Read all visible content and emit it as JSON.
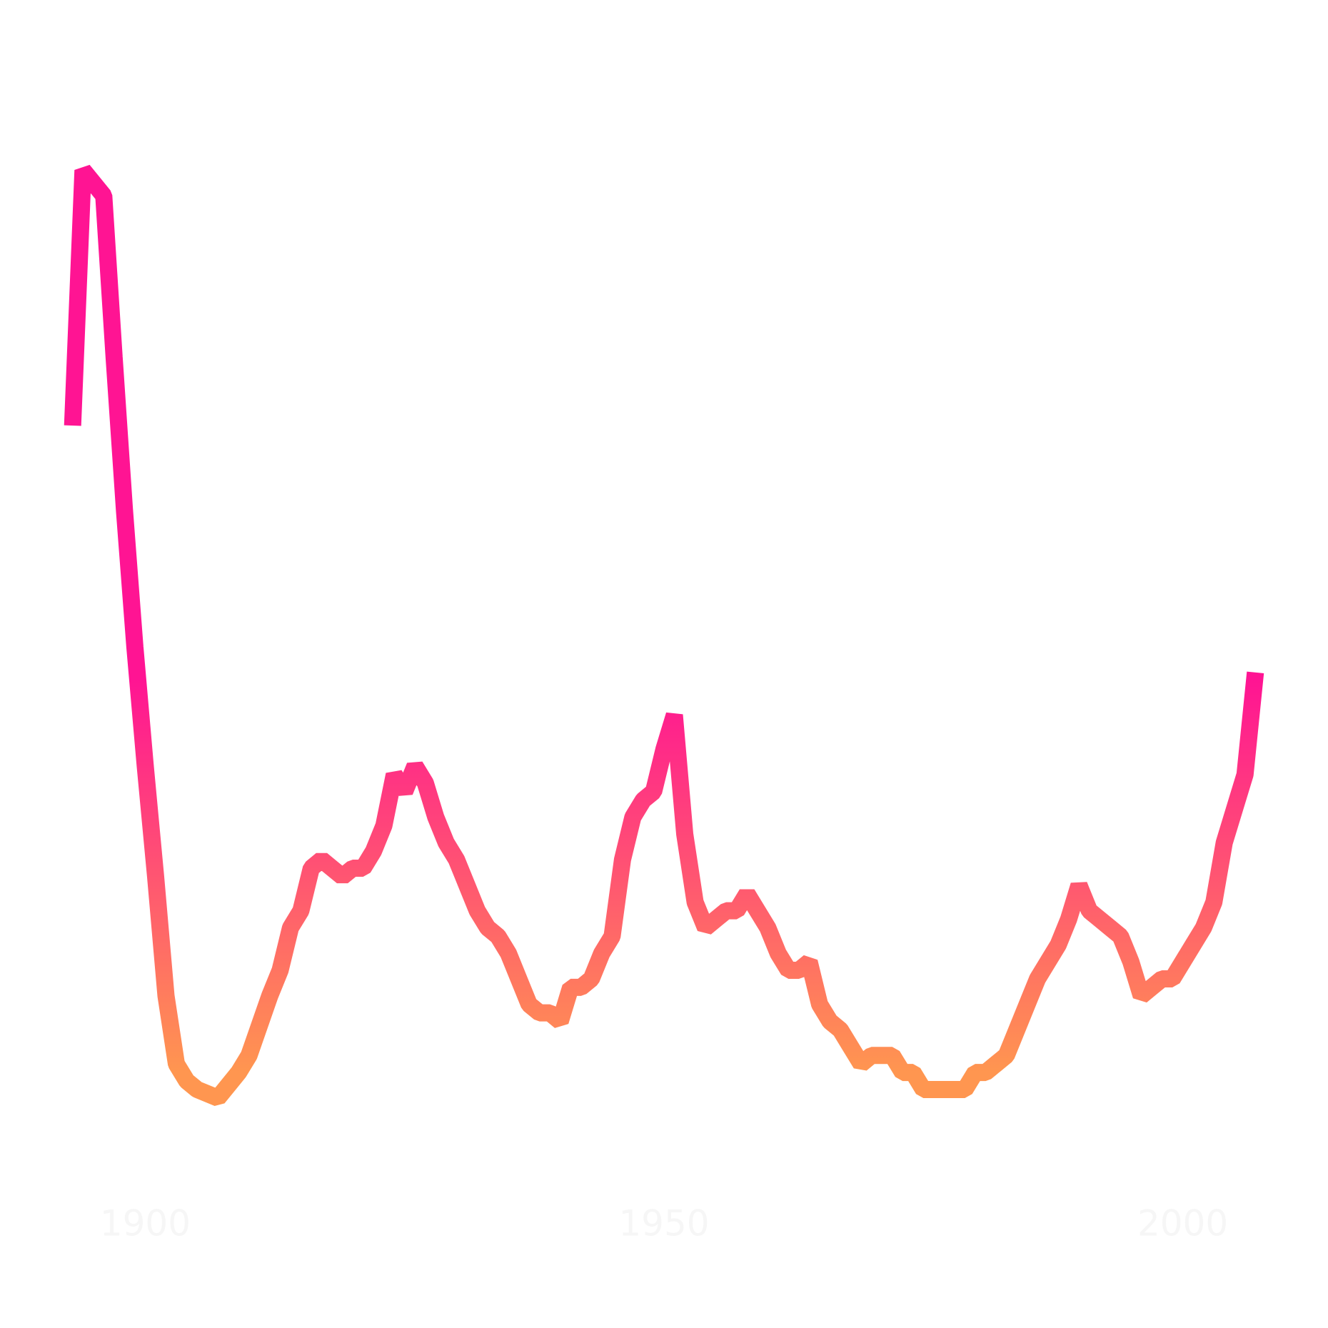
{
  "chart_data": {
    "type": "line",
    "x": [
      1893,
      1894,
      1896,
      1897,
      1898,
      1899,
      1900,
      1901,
      1902,
      1903,
      1904,
      1905,
      1907,
      1909,
      1910,
      1912,
      1913,
      1914,
      1915,
      1916,
      1917,
      1918,
      1919,
      1920,
      1921,
      1922,
      1923,
      1924,
      1925,
      1926,
      1927,
      1928,
      1929,
      1930,
      1931,
      1932,
      1933,
      1934,
      1935,
      1936,
      1937,
      1938,
      1939,
      1940,
      1941,
      1942,
      1943,
      1944,
      1945,
      1946,
      1947,
      1948,
      1949,
      1950,
      1951,
      1952,
      1953,
      1954,
      1955,
      1956,
      1957,
      1958,
      1959,
      1960,
      1961,
      1962,
      1963,
      1964,
      1965,
      1966,
      1967,
      1968,
      1969,
      1970,
      1971,
      1972,
      1973,
      1974,
      1975,
      1976,
      1977,
      1978,
      1979,
      1980,
      1981,
      1982,
      1983,
      1984,
      1985,
      1986,
      1987,
      1988,
      1989,
      1990,
      1991,
      1992,
      1993,
      1994,
      1995,
      1996,
      1997,
      1998,
      1999,
      2000,
      2001,
      2002,
      2003,
      2004,
      2005,
      2006,
      2007
    ],
    "series": [
      {
        "gradient": [
          "#ff1493",
          "#ff9650"
        ],
        "values": [
          90,
          120,
          117,
          98,
          80,
          64,
          50,
          37,
          23,
          15,
          13,
          12,
          11,
          14,
          16,
          23,
          26,
          31,
          33,
          38,
          39,
          38,
          37,
          38,
          38,
          40,
          43,
          49,
          47,
          50,
          48,
          44,
          41,
          39,
          36,
          33,
          31,
          30,
          28,
          25,
          22,
          21,
          21,
          20,
          24,
          24,
          25,
          28,
          30,
          39,
          44,
          46,
          47,
          52,
          56,
          42,
          34,
          31,
          32,
          33,
          33,
          35,
          33,
          31,
          28,
          26,
          26,
          27,
          22,
          20,
          19,
          17,
          15,
          16,
          16,
          16,
          14,
          14,
          12,
          12,
          12,
          12,
          12,
          14,
          14,
          15,
          16,
          19,
          22,
          25,
          27,
          29,
          32,
          36,
          33,
          32,
          31,
          30,
          27,
          23,
          24,
          25,
          25,
          27,
          29,
          31,
          34,
          41,
          45,
          49,
          61
        ]
      }
    ],
    "xlim": [
      1886,
      2014
    ],
    "xticks": [
      1900,
      1950,
      2000
    ],
    "ylim": [
      0,
      140
    ]
  }
}
